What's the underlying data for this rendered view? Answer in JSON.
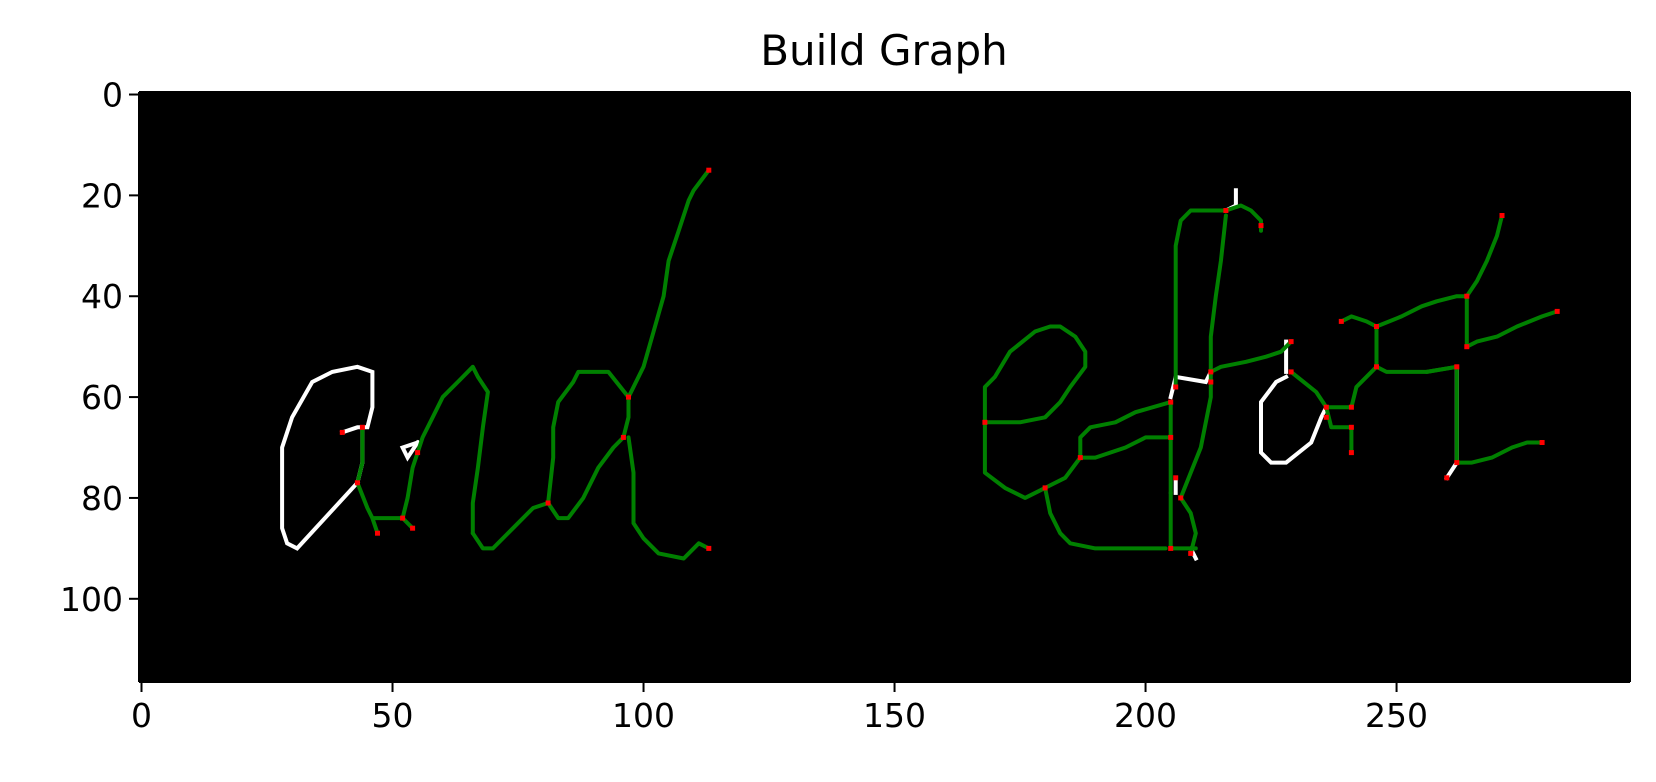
{
  "chart_data": {
    "type": "image",
    "title": "Build Graph",
    "xlabel": "",
    "ylabel": "",
    "xlim": [
      -0.5,
      296.5
    ],
    "ylim": [
      116.5,
      -0.5
    ],
    "x_ticks": [
      0,
      50,
      100,
      150,
      200,
      250
    ],
    "y_ticks": [
      0,
      20,
      40,
      60,
      80,
      100
    ],
    "x_tick_labels": [
      "0",
      "50",
      "100",
      "150",
      "200",
      "250"
    ],
    "y_tick_labels": [
      "0",
      "20",
      "40",
      "60",
      "80",
      "100"
    ],
    "grid": false,
    "colors": {
      "background": "#000000",
      "skeleton": "#ffffff",
      "graph_edge": "#008000",
      "graph_node": "#ff0000"
    },
    "skeleton_strokes": [
      [
        [
          40,
          67
        ],
        [
          43,
          66
        ],
        [
          44,
          66
        ],
        [
          44,
          73
        ],
        [
          43,
          77
        ]
      ],
      [
        [
          43,
          77
        ],
        [
          31,
          90
        ],
        [
          29,
          89
        ],
        [
          28,
          86
        ],
        [
          28,
          70
        ],
        [
          30,
          64
        ],
        [
          34,
          57
        ],
        [
          38,
          55
        ],
        [
          43,
          54
        ],
        [
          46,
          55
        ],
        [
          46,
          62
        ],
        [
          45,
          66
        ],
        [
          44,
          66
        ]
      ],
      [
        [
          55,
          69
        ],
        [
          53,
          72
        ],
        [
          52,
          70
        ],
        [
          55,
          69
        ]
      ],
      [
        [
          205,
          60
        ],
        [
          206,
          56
        ],
        [
          212,
          57
        ],
        [
          213,
          55
        ]
      ],
      [
        [
          218,
          19
        ],
        [
          218,
          22
        ],
        [
          216,
          23
        ]
      ],
      [
        [
          228,
          56
        ],
        [
          226,
          57
        ],
        [
          223,
          61
        ],
        [
          223,
          71
        ],
        [
          225,
          73
        ],
        [
          228,
          73
        ],
        [
          233,
          69
        ],
        [
          235,
          64
        ],
        [
          236,
          62
        ]
      ],
      [
        [
          228,
          49
        ],
        [
          228,
          55
        ]
      ],
      [
        [
          262,
          54
        ],
        [
          262,
          58
        ],
        [
          262,
          73
        ],
        [
          260,
          76
        ]
      ],
      [
        [
          206,
          76
        ],
        [
          206,
          79
        ]
      ],
      [
        [
          209,
          90
        ],
        [
          210,
          92
        ]
      ]
    ],
    "graph_edges": [
      [
        [
          43,
          77
        ],
        [
          45,
          82
        ],
        [
          46,
          84
        ],
        [
          52,
          84
        ]
      ],
      [
        [
          46,
          84
        ],
        [
          47,
          87
        ]
      ],
      [
        [
          52,
          84
        ],
        [
          54,
          86
        ]
      ],
      [
        [
          52,
          84
        ],
        [
          53,
          80
        ],
        [
          54,
          74
        ],
        [
          55,
          71
        ]
      ],
      [
        [
          44,
          66
        ],
        [
          44,
          73
        ],
        [
          43,
          77
        ]
      ],
      [
        [
          66,
          87
        ],
        [
          66,
          81
        ],
        [
          67,
          74
        ],
        [
          68,
          66
        ],
        [
          69,
          59
        ],
        [
          67,
          56
        ],
        [
          66,
          54
        ],
        [
          63,
          57
        ],
        [
          60,
          60
        ],
        [
          58,
          64
        ],
        [
          56,
          68
        ],
        [
          55,
          71
        ]
      ],
      [
        [
          66,
          87
        ],
        [
          68,
          90
        ],
        [
          70,
          90
        ],
        [
          74,
          86
        ],
        [
          78,
          82
        ],
        [
          81,
          81
        ]
      ],
      [
        [
          81,
          81
        ],
        [
          82,
          72
        ],
        [
          82,
          66
        ],
        [
          83,
          61
        ],
        [
          86,
          57
        ],
        [
          87,
          55
        ],
        [
          93,
          55
        ],
        [
          97,
          60
        ]
      ],
      [
        [
          81,
          81
        ],
        [
          83,
          84
        ],
        [
          85,
          84
        ],
        [
          88,
          80
        ],
        [
          91,
          74
        ],
        [
          94,
          70
        ],
        [
          96,
          68
        ]
      ],
      [
        [
          96,
          68
        ],
        [
          97,
          64
        ],
        [
          97,
          60
        ]
      ],
      [
        [
          97,
          60
        ],
        [
          100,
          54
        ],
        [
          102,
          47
        ],
        [
          104,
          40
        ],
        [
          105,
          33
        ],
        [
          107,
          27
        ],
        [
          109,
          21
        ],
        [
          110,
          19
        ],
        [
          113,
          15
        ]
      ],
      [
        [
          97,
          68
        ],
        [
          98,
          75
        ],
        [
          98,
          85
        ],
        [
          100,
          88
        ],
        [
          103,
          91
        ],
        [
          108,
          92
        ],
        [
          111,
          89
        ],
        [
          113,
          90
        ]
      ],
      [
        [
          168,
          65
        ],
        [
          168,
          58
        ],
        [
          170,
          56
        ],
        [
          173,
          51
        ],
        [
          178,
          47
        ],
        [
          181,
          46
        ],
        [
          183,
          46
        ],
        [
          186,
          48
        ],
        [
          188,
          51
        ],
        [
          188,
          54
        ],
        [
          185,
          58
        ],
        [
          183,
          61
        ],
        [
          180,
          64
        ],
        [
          175,
          65
        ],
        [
          168,
          65
        ]
      ],
      [
        [
          168,
          65
        ],
        [
          168,
          75
        ],
        [
          172,
          78
        ],
        [
          176,
          80
        ],
        [
          180,
          78
        ]
      ],
      [
        [
          180,
          78
        ],
        [
          181,
          83
        ],
        [
          183,
          87
        ],
        [
          185,
          89
        ],
        [
          190,
          90
        ],
        [
          204,
          90
        ]
      ],
      [
        [
          180,
          78
        ],
        [
          184,
          76
        ],
        [
          187,
          72
        ]
      ],
      [
        [
          187,
          72
        ],
        [
          187,
          68
        ],
        [
          189,
          66
        ],
        [
          194,
          65
        ],
        [
          198,
          63
        ],
        [
          205,
          61
        ]
      ],
      [
        [
          187,
          72
        ],
        [
          190,
          72
        ],
        [
          196,
          70
        ],
        [
          200,
          68
        ],
        [
          205,
          68
        ]
      ],
      [
        [
          205,
          61
        ],
        [
          205,
          68
        ]
      ],
      [
        [
          205,
          68
        ],
        [
          205,
          79
        ]
      ],
      [
        [
          205,
          79
        ],
        [
          205,
          90
        ]
      ],
      [
        [
          205,
          90
        ],
        [
          210,
          90
        ]
      ],
      [
        [
          206,
          58
        ],
        [
          206,
          30
        ],
        [
          207,
          25
        ],
        [
          209,
          23
        ],
        [
          216,
          23
        ]
      ],
      [
        [
          213,
          57
        ],
        [
          213,
          60
        ],
        [
          212,
          65
        ],
        [
          211,
          70
        ],
        [
          209,
          75
        ],
        [
          207,
          80
        ]
      ],
      [
        [
          207,
          80
        ],
        [
          209,
          83
        ],
        [
          210,
          87
        ],
        [
          209,
          91
        ]
      ],
      [
        [
          216,
          23
        ],
        [
          219,
          22
        ],
        [
          221,
          23
        ],
        [
          223,
          25
        ],
        [
          223,
          27
        ]
      ],
      [
        [
          213,
          55
        ],
        [
          215,
          54
        ],
        [
          220,
          53
        ],
        [
          224,
          52
        ],
        [
          227,
          51
        ],
        [
          229,
          49
        ]
      ],
      [
        [
          213,
          57
        ],
        [
          213,
          48
        ],
        [
          214,
          40
        ],
        [
          215,
          33
        ],
        [
          216,
          24
        ]
      ],
      [
        [
          229,
          55
        ],
        [
          229,
          55
        ]
      ],
      [
        [
          229,
          55
        ],
        [
          234,
          59
        ],
        [
          236,
          62
        ]
      ],
      [
        [
          236,
          62
        ],
        [
          241,
          62
        ]
      ],
      [
        [
          236,
          62
        ],
        [
          237,
          66
        ],
        [
          241,
          66
        ]
      ],
      [
        [
          241,
          62
        ],
        [
          242,
          58
        ],
        [
          246,
          54
        ],
        [
          248,
          55
        ],
        [
          252,
          55
        ],
        [
          256,
          55
        ],
        [
          262,
          54
        ]
      ],
      [
        [
          241,
          66
        ],
        [
          241,
          71
        ]
      ],
      [
        [
          239,
          45
        ],
        [
          241,
          44
        ],
        [
          244,
          45
        ],
        [
          246,
          46
        ]
      ],
      [
        [
          246,
          46
        ],
        [
          251,
          44
        ],
        [
          255,
          42
        ],
        [
          258,
          41
        ],
        [
          262,
          40
        ],
        [
          264,
          40
        ]
      ],
      [
        [
          246,
          46
        ],
        [
          246,
          54
        ]
      ],
      [
        [
          264,
          40
        ],
        [
          264,
          50
        ]
      ],
      [
        [
          264,
          50
        ],
        [
          266,
          49
        ],
        [
          270,
          48
        ],
        [
          274,
          46
        ],
        [
          279,
          44
        ],
        [
          282,
          43
        ]
      ],
      [
        [
          264,
          40
        ],
        [
          266,
          37
        ],
        [
          268,
          33
        ],
        [
          270,
          28
        ],
        [
          271,
          24
        ]
      ],
      [
        [
          262,
          73
        ],
        [
          265,
          73
        ],
        [
          269,
          72
        ],
        [
          273,
          70
        ],
        [
          276,
          69
        ],
        [
          279,
          69
        ]
      ],
      [
        [
          262,
          54
        ],
        [
          262,
          73
        ]
      ],
      [
        [
          256,
          55
        ],
        [
          262,
          54
        ]
      ]
    ],
    "graph_nodes": [
      [
        113,
        15
      ],
      [
        97,
        60
      ],
      [
        96,
        68
      ],
      [
        81,
        81
      ],
      [
        113,
        90
      ],
      [
        55,
        71
      ],
      [
        44,
        66
      ],
      [
        43,
        77
      ],
      [
        40,
        67
      ],
      [
        52,
        84
      ],
      [
        54,
        86
      ],
      [
        47,
        87
      ],
      [
        168,
        65
      ],
      [
        180,
        78
      ],
      [
        187,
        72
      ],
      [
        205,
        61
      ],
      [
        205,
        68
      ],
      [
        205,
        90
      ],
      [
        209,
        91
      ],
      [
        206,
        76
      ],
      [
        207,
        80
      ],
      [
        206,
        58
      ],
      [
        213,
        57
      ],
      [
        213,
        55
      ],
      [
        216,
        23
      ],
      [
        223,
        26
      ],
      [
        229,
        49
      ],
      [
        229,
        55
      ],
      [
        236,
        62
      ],
      [
        236,
        64
      ],
      [
        241,
        62
      ],
      [
        241,
        66
      ],
      [
        241,
        71
      ],
      [
        239,
        45
      ],
      [
        246,
        46
      ],
      [
        246,
        54
      ],
      [
        264,
        40
      ],
      [
        264,
        50
      ],
      [
        282,
        43
      ],
      [
        271,
        24
      ],
      [
        262,
        54
      ],
      [
        262,
        73
      ],
      [
        260,
        76
      ],
      [
        279,
        69
      ]
    ]
  }
}
